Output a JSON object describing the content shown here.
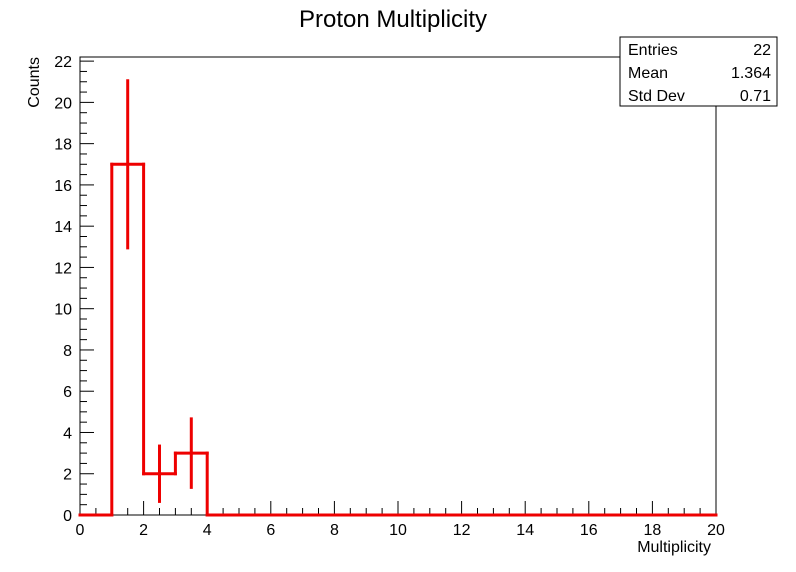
{
  "chart_data": {
    "type": "bar",
    "subtype": "histogram",
    "title": "Proton Multiplicity",
    "xlabel": "Multiplicity",
    "ylabel": "Counts",
    "xlim": [
      0,
      20
    ],
    "ylim": [
      0,
      22.2
    ],
    "x_ticks": [
      0,
      2,
      4,
      6,
      8,
      10,
      12,
      14,
      16,
      18,
      20
    ],
    "y_ticks": [
      0,
      2,
      4,
      6,
      8,
      10,
      12,
      14,
      16,
      18,
      20,
      22
    ],
    "bin_edges": [
      0,
      1,
      2,
      3,
      4,
      5,
      6,
      7,
      8,
      9,
      10,
      11,
      12,
      13,
      14,
      15,
      16,
      17,
      18,
      19,
      20
    ],
    "values": [
      0,
      17,
      2,
      3,
      0,
      0,
      0,
      0,
      0,
      0,
      0,
      0,
      0,
      0,
      0,
      0,
      0,
      0,
      0,
      0
    ],
    "errors": [
      0,
      4.123,
      1.414,
      1.732,
      0,
      0,
      0,
      0,
      0,
      0,
      0,
      0,
      0,
      0,
      0,
      0,
      0,
      0,
      0,
      0
    ],
    "color": "#ee0000",
    "grid": false,
    "legend": "none",
    "stats_box": {
      "placement": "top-right",
      "rows": [
        {
          "label": "Entries",
          "value": "22"
        },
        {
          "label": "Mean",
          "value": "1.364"
        },
        {
          "label": "Std Dev",
          "value": "0.71"
        }
      ]
    }
  }
}
